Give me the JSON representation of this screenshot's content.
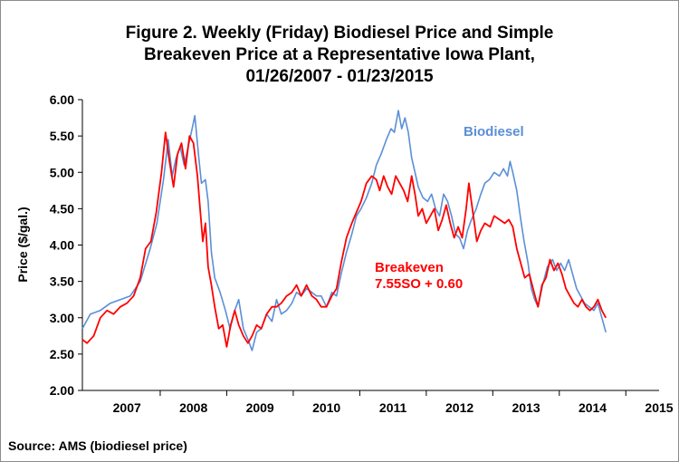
{
  "chart_data": {
    "type": "line",
    "title_lines": [
      "Figure 2. Weekly (Friday) Biodiesel Price and Simple",
      "Breakeven Price at a Representative Iowa Plant,",
      "01/26/2007  -  01/23/2015"
    ],
    "ylabel": "Price ($/gal.)",
    "xlabel": "",
    "ylim": [
      2.0,
      6.0
    ],
    "y_ticks": [
      "2.00",
      "2.50",
      "3.00",
      "3.50",
      "4.00",
      "4.50",
      "5.00",
      "5.50",
      "6.00"
    ],
    "x_range": [
      2006.33,
      2015.0
    ],
    "x_tick_labels": [
      {
        "label": "2007",
        "x": 2007.0
      },
      {
        "label": "2008",
        "x": 2008.0
      },
      {
        "label": "2009",
        "x": 2009.0
      },
      {
        "label": "2010",
        "x": 2010.0
      },
      {
        "label": "2011",
        "x": 2011.0
      },
      {
        "label": "2012",
        "x": 2012.0
      },
      {
        "label": "2013",
        "x": 2013.0
      },
      {
        "label": "2014",
        "x": 2014.0
      },
      {
        "label": "2015",
        "x": 2015.0
      }
    ],
    "x_boundaries": [
      2007.5,
      2008.5,
      2009.5,
      2010.5,
      2011.5,
      2012.5,
      2013.5,
      2014.5
    ],
    "grid": false,
    "series": [
      {
        "name": "Biodiesel",
        "color": "#5b8fd6",
        "points": [
          [
            2006.33,
            2.85
          ],
          [
            2006.45,
            3.05
          ],
          [
            2006.6,
            3.1
          ],
          [
            2006.75,
            3.2
          ],
          [
            2006.9,
            3.25
          ],
          [
            2007.05,
            3.3
          ],
          [
            2007.2,
            3.5
          ],
          [
            2007.35,
            3.95
          ],
          [
            2007.45,
            4.3
          ],
          [
            2007.55,
            4.9
          ],
          [
            2007.62,
            5.45
          ],
          [
            2007.68,
            4.95
          ],
          [
            2007.74,
            5.2
          ],
          [
            2007.8,
            5.35
          ],
          [
            2007.86,
            5.1
          ],
          [
            2007.92,
            5.35
          ],
          [
            2007.98,
            5.6
          ],
          [
            2008.02,
            5.78
          ],
          [
            2008.08,
            5.2
          ],
          [
            2008.12,
            4.85
          ],
          [
            2008.18,
            4.9
          ],
          [
            2008.22,
            4.6
          ],
          [
            2008.27,
            3.9
          ],
          [
            2008.32,
            3.55
          ],
          [
            2008.4,
            3.35
          ],
          [
            2008.48,
            3.1
          ],
          [
            2008.55,
            2.85
          ],
          [
            2008.62,
            3.1
          ],
          [
            2008.68,
            3.25
          ],
          [
            2008.75,
            2.85
          ],
          [
            2008.82,
            2.7
          ],
          [
            2008.88,
            2.55
          ],
          [
            2008.95,
            2.8
          ],
          [
            2009.02,
            2.85
          ],
          [
            2009.1,
            3.05
          ],
          [
            2009.18,
            2.95
          ],
          [
            2009.25,
            3.25
          ],
          [
            2009.32,
            3.05
          ],
          [
            2009.4,
            3.1
          ],
          [
            2009.48,
            3.2
          ],
          [
            2009.55,
            3.35
          ],
          [
            2009.62,
            3.3
          ],
          [
            2009.7,
            3.4
          ],
          [
            2009.78,
            3.35
          ],
          [
            2009.85,
            3.3
          ],
          [
            2009.92,
            3.3
          ],
          [
            2010.0,
            3.15
          ],
          [
            2010.08,
            3.35
          ],
          [
            2010.15,
            3.3
          ],
          [
            2010.22,
            3.6
          ],
          [
            2010.3,
            3.9
          ],
          [
            2010.38,
            4.15
          ],
          [
            2010.45,
            4.4
          ],
          [
            2010.52,
            4.5
          ],
          [
            2010.6,
            4.65
          ],
          [
            2010.68,
            4.85
          ],
          [
            2010.75,
            5.1
          ],
          [
            2010.82,
            5.25
          ],
          [
            2010.9,
            5.45
          ],
          [
            2010.97,
            5.6
          ],
          [
            2011.02,
            5.55
          ],
          [
            2011.08,
            5.85
          ],
          [
            2011.13,
            5.6
          ],
          [
            2011.18,
            5.75
          ],
          [
            2011.23,
            5.55
          ],
          [
            2011.28,
            5.2
          ],
          [
            2011.33,
            5.0
          ],
          [
            2011.38,
            4.8
          ],
          [
            2011.45,
            4.65
          ],
          [
            2011.52,
            4.6
          ],
          [
            2011.58,
            4.7
          ],
          [
            2011.64,
            4.5
          ],
          [
            2011.7,
            4.4
          ],
          [
            2011.76,
            4.7
          ],
          [
            2011.82,
            4.6
          ],
          [
            2011.88,
            4.4
          ],
          [
            2011.94,
            4.15
          ],
          [
            2012.0,
            4.1
          ],
          [
            2012.06,
            3.95
          ],
          [
            2012.12,
            4.2
          ],
          [
            2012.18,
            4.35
          ],
          [
            2012.25,
            4.5
          ],
          [
            2012.32,
            4.7
          ],
          [
            2012.38,
            4.85
          ],
          [
            2012.45,
            4.9
          ],
          [
            2012.52,
            5.0
          ],
          [
            2012.6,
            4.95
          ],
          [
            2012.66,
            5.05
          ],
          [
            2012.72,
            4.95
          ],
          [
            2012.76,
            5.15
          ],
          [
            2012.8,
            5.0
          ],
          [
            2012.86,
            4.75
          ],
          [
            2012.92,
            4.35
          ],
          [
            2012.97,
            4.05
          ],
          [
            2013.03,
            3.75
          ],
          [
            2013.08,
            3.4
          ],
          [
            2013.13,
            3.25
          ],
          [
            2013.18,
            3.15
          ],
          [
            2013.25,
            3.45
          ],
          [
            2013.32,
            3.7
          ],
          [
            2013.4,
            3.8
          ],
          [
            2013.46,
            3.65
          ],
          [
            2013.52,
            3.75
          ],
          [
            2013.58,
            3.65
          ],
          [
            2013.64,
            3.8
          ],
          [
            2013.7,
            3.6
          ],
          [
            2013.76,
            3.4
          ],
          [
            2013.82,
            3.3
          ],
          [
            2013.88,
            3.2
          ],
          [
            2013.95,
            3.15
          ],
          [
            2014.02,
            3.1
          ],
          [
            2014.08,
            3.2
          ],
          [
            2014.14,
            3.0
          ],
          [
            2014.2,
            2.8
          ]
        ]
      },
      {
        "name": "Breakeven",
        "name_line2": "7.55SO + 0.60",
        "color": "#ff0000",
        "points": [
          [
            2006.33,
            2.7
          ],
          [
            2006.4,
            2.65
          ],
          [
            2006.5,
            2.75
          ],
          [
            2006.6,
            3.0
          ],
          [
            2006.7,
            3.1
          ],
          [
            2006.8,
            3.05
          ],
          [
            2006.9,
            3.15
          ],
          [
            2007.0,
            3.2
          ],
          [
            2007.1,
            3.3
          ],
          [
            2007.2,
            3.55
          ],
          [
            2007.28,
            3.95
          ],
          [
            2007.36,
            4.05
          ],
          [
            2007.44,
            4.45
          ],
          [
            2007.52,
            5.0
          ],
          [
            2007.58,
            5.55
          ],
          [
            2007.64,
            5.15
          ],
          [
            2007.7,
            4.8
          ],
          [
            2007.76,
            5.25
          ],
          [
            2007.82,
            5.4
          ],
          [
            2007.88,
            5.05
          ],
          [
            2007.94,
            5.5
          ],
          [
            2008.0,
            5.4
          ],
          [
            2008.06,
            4.95
          ],
          [
            2008.1,
            4.5
          ],
          [
            2008.14,
            4.05
          ],
          [
            2008.18,
            4.3
          ],
          [
            2008.22,
            3.7
          ],
          [
            2008.27,
            3.45
          ],
          [
            2008.32,
            3.15
          ],
          [
            2008.38,
            2.85
          ],
          [
            2008.44,
            2.9
          ],
          [
            2008.5,
            2.6
          ],
          [
            2008.56,
            2.9
          ],
          [
            2008.62,
            3.1
          ],
          [
            2008.68,
            2.9
          ],
          [
            2008.75,
            2.75
          ],
          [
            2008.82,
            2.65
          ],
          [
            2008.88,
            2.75
          ],
          [
            2008.95,
            2.9
          ],
          [
            2009.02,
            2.85
          ],
          [
            2009.1,
            3.05
          ],
          [
            2009.18,
            3.15
          ],
          [
            2009.25,
            3.15
          ],
          [
            2009.32,
            3.2
          ],
          [
            2009.4,
            3.3
          ],
          [
            2009.48,
            3.35
          ],
          [
            2009.55,
            3.45
          ],
          [
            2009.62,
            3.3
          ],
          [
            2009.7,
            3.45
          ],
          [
            2009.78,
            3.3
          ],
          [
            2009.85,
            3.25
          ],
          [
            2009.92,
            3.15
          ],
          [
            2010.0,
            3.15
          ],
          [
            2010.08,
            3.3
          ],
          [
            2010.15,
            3.4
          ],
          [
            2010.22,
            3.75
          ],
          [
            2010.3,
            4.1
          ],
          [
            2010.38,
            4.3
          ],
          [
            2010.45,
            4.45
          ],
          [
            2010.52,
            4.6
          ],
          [
            2010.6,
            4.85
          ],
          [
            2010.68,
            4.95
          ],
          [
            2010.75,
            4.9
          ],
          [
            2010.8,
            4.75
          ],
          [
            2010.86,
            4.95
          ],
          [
            2010.92,
            4.8
          ],
          [
            2010.98,
            4.7
          ],
          [
            2011.04,
            4.95
          ],
          [
            2011.1,
            4.85
          ],
          [
            2011.16,
            4.75
          ],
          [
            2011.22,
            4.6
          ],
          [
            2011.28,
            4.95
          ],
          [
            2011.33,
            4.7
          ],
          [
            2011.38,
            4.4
          ],
          [
            2011.44,
            4.5
          ],
          [
            2011.5,
            4.3
          ],
          [
            2011.56,
            4.4
          ],
          [
            2011.62,
            4.5
          ],
          [
            2011.68,
            4.2
          ],
          [
            2011.74,
            4.35
          ],
          [
            2011.8,
            4.55
          ],
          [
            2011.86,
            4.3
          ],
          [
            2011.92,
            4.1
          ],
          [
            2011.98,
            4.25
          ],
          [
            2012.04,
            4.1
          ],
          [
            2012.1,
            4.5
          ],
          [
            2012.14,
            4.85
          ],
          [
            2012.2,
            4.45
          ],
          [
            2012.26,
            4.05
          ],
          [
            2012.32,
            4.2
          ],
          [
            2012.38,
            4.3
          ],
          [
            2012.46,
            4.25
          ],
          [
            2012.52,
            4.4
          ],
          [
            2012.6,
            4.35
          ],
          [
            2012.68,
            4.3
          ],
          [
            2012.74,
            4.35
          ],
          [
            2012.8,
            4.25
          ],
          [
            2012.86,
            3.95
          ],
          [
            2012.92,
            3.75
          ],
          [
            2012.98,
            3.55
          ],
          [
            2013.05,
            3.6
          ],
          [
            2013.12,
            3.35
          ],
          [
            2013.18,
            3.15
          ],
          [
            2013.24,
            3.45
          ],
          [
            2013.3,
            3.55
          ],
          [
            2013.36,
            3.8
          ],
          [
            2013.42,
            3.65
          ],
          [
            2013.48,
            3.75
          ],
          [
            2013.54,
            3.6
          ],
          [
            2013.6,
            3.4
          ],
          [
            2013.66,
            3.3
          ],
          [
            2013.72,
            3.2
          ],
          [
            2013.78,
            3.15
          ],
          [
            2013.84,
            3.25
          ],
          [
            2013.9,
            3.15
          ],
          [
            2013.96,
            3.1
          ],
          [
            2014.02,
            3.15
          ],
          [
            2014.08,
            3.25
          ],
          [
            2014.14,
            3.1
          ],
          [
            2014.2,
            3.0
          ]
        ]
      }
    ]
  },
  "source_text": "Source: AMS (biodiesel price)"
}
